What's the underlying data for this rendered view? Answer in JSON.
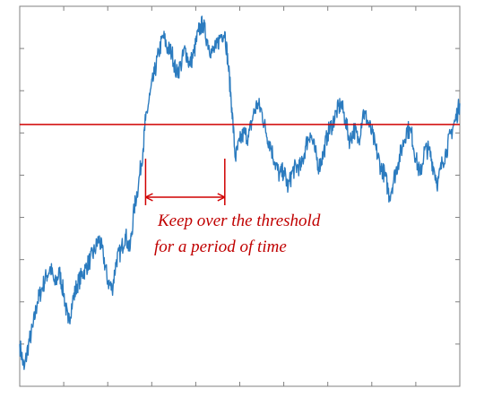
{
  "chart_data": {
    "type": "line",
    "title": "",
    "xlabel": "",
    "ylabel": "",
    "xlim": [
      0,
      500
    ],
    "ylim": [
      0,
      9
    ],
    "grid": false,
    "legend": "none",
    "colors": {
      "series": "#2b7bbf",
      "threshold": "#d00000",
      "annotation": "#c00000",
      "axes": "#808080"
    },
    "threshold": 6.2,
    "hold_interval": [
      143,
      233
    ],
    "series": [
      {
        "x": [
          0,
          5,
          10,
          15,
          20,
          25,
          30,
          35,
          40,
          45,
          50,
          55,
          60,
          65,
          70,
          75,
          80,
          85,
          90,
          95,
          100,
          105,
          110,
          115,
          120,
          125,
          130,
          135,
          140,
          143,
          148,
          153,
          158,
          163,
          168,
          173,
          178,
          183,
          188,
          193,
          198,
          203,
          208,
          213,
          218,
          223,
          228,
          233,
          237,
          241,
          245,
          250,
          255,
          260,
          265,
          270,
          275,
          280,
          285,
          290,
          295,
          300,
          305,
          310,
          315,
          320,
          325,
          330,
          335,
          340,
          345,
          350,
          355,
          360,
          365,
          370,
          375,
          380,
          385,
          390,
          395,
          400,
          405,
          410,
          415,
          420,
          425,
          430,
          435,
          440,
          445,
          450,
          455,
          460,
          465,
          470,
          475,
          480,
          485,
          490,
          495,
          500
        ],
        "values": [
          1.0,
          0.4,
          1.0,
          1.4,
          2.0,
          2.3,
          2.6,
          2.8,
          2.4,
          2.7,
          2.2,
          1.5,
          2.0,
          2.4,
          2.6,
          2.8,
          3.0,
          3.2,
          3.5,
          3.1,
          2.5,
          2.3,
          3.0,
          3.2,
          3.6,
          3.2,
          4.2,
          4.8,
          5.6,
          6.3,
          6.9,
          7.4,
          7.9,
          8.3,
          8.0,
          7.9,
          7.4,
          7.6,
          8.0,
          7.6,
          7.9,
          8.4,
          8.6,
          8.2,
          7.9,
          8.0,
          8.3,
          8.4,
          7.6,
          6.6,
          5.4,
          5.8,
          6.0,
          5.9,
          6.4,
          6.7,
          6.5,
          6.0,
          5.7,
          5.3,
          5.0,
          5.1,
          4.7,
          5.1,
          5.2,
          5.2,
          5.7,
          6.0,
          5.6,
          5.2,
          5.5,
          6.0,
          6.2,
          6.5,
          6.7,
          6.3,
          5.8,
          6.1,
          5.8,
          6.5,
          6.3,
          6.0,
          5.6,
          5.2,
          5.0,
          4.5,
          4.9,
          5.3,
          5.7,
          6.1,
          6.0,
          5.4,
          5.0,
          5.6,
          5.6,
          5.2,
          4.8,
          5.3,
          5.6,
          6.0,
          6.3,
          6.7
        ]
      }
    ],
    "annotation": {
      "line1": "Keep over the threshold",
      "line2": "for a period of time"
    }
  }
}
